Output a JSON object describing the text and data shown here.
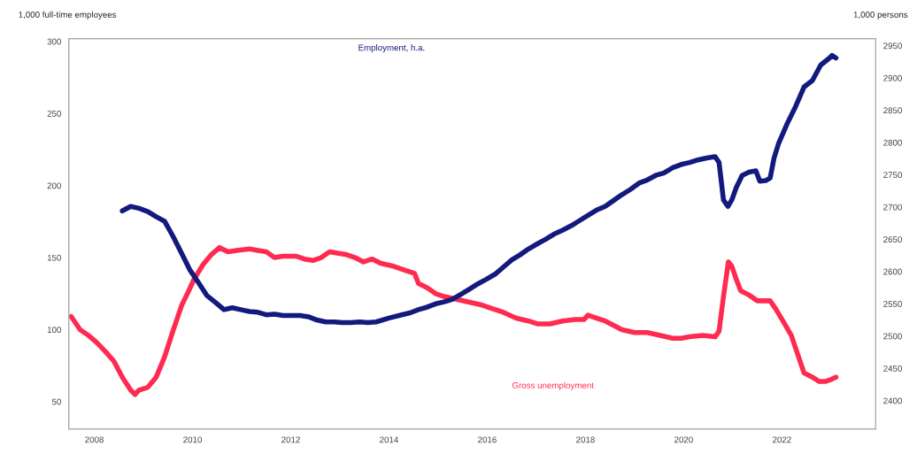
{
  "chart_data": {
    "type": "line",
    "annotations": [
      "1,000 full-time employees",
      "1,000 persons"
    ],
    "xlim": [
      2007.48,
      2023.91
    ],
    "xticks": [
      2008,
      2010,
      2012,
      2014,
      2016,
      2018,
      2020,
      2022
    ],
    "ylim": [
      31,
      302
    ],
    "yticks": [
      50,
      100,
      150,
      200,
      250,
      300
    ],
    "y2lim": [
      2356,
      2961
    ],
    "y2ticks": [
      2400,
      2450,
      2500,
      2550,
      2600,
      2650,
      2700,
      2750,
      2800,
      2850,
      2900,
      2950
    ],
    "grid": false,
    "legend": false,
    "marker": "none",
    "line_style": "solid",
    "series": [
      {
        "name": "Employment, h.a.",
        "color": "#121a7d",
        "axis": "y2",
        "x": [
          2008.57,
          2008.74,
          2008.91,
          2009.09,
          2009.26,
          2009.43,
          2009.6,
          2009.78,
          2009.95,
          2010.12,
          2010.29,
          2010.47,
          2010.64,
          2010.81,
          2010.98,
          2011.16,
          2011.33,
          2011.5,
          2011.67,
          2011.84,
          2012.02,
          2012.19,
          2012.36,
          2012.53,
          2012.71,
          2012.88,
          2013.05,
          2013.22,
          2013.4,
          2013.57,
          2013.74,
          2014.0,
          2014.26,
          2014.43,
          2014.6,
          2014.78,
          2014.95,
          2015.12,
          2015.29,
          2015.47,
          2015.64,
          2015.81,
          2015.98,
          2016.16,
          2016.33,
          2016.5,
          2016.67,
          2016.84,
          2017.02,
          2017.19,
          2017.36,
          2017.53,
          2017.71,
          2017.88,
          2018.05,
          2018.22,
          2018.4,
          2018.57,
          2018.74,
          2018.91,
          2019.09,
          2019.26,
          2019.43,
          2019.6,
          2019.78,
          2019.95,
          2020.12,
          2020.29,
          2020.47,
          2020.64,
          2020.72,
          2020.81,
          2020.9,
          2020.98,
          2021.07,
          2021.19,
          2021.33,
          2021.47,
          2021.55,
          2021.67,
          2021.76,
          2021.84,
          2021.93,
          2022.1,
          2022.28,
          2022.45,
          2022.62,
          2022.79,
          2022.97,
          2023.02,
          2023.1
        ],
        "values": [
          2694,
          2701,
          2698,
          2693,
          2685,
          2678,
          2655,
          2628,
          2602,
          2583,
          2563,
          2552,
          2541,
          2544,
          2541,
          2538,
          2537,
          2533,
          2534,
          2532,
          2532,
          2532,
          2530,
          2525,
          2522,
          2522,
          2521,
          2521,
          2522,
          2521,
          2522,
          2528,
          2533,
          2536,
          2541,
          2545,
          2550,
          2553,
          2557,
          2565,
          2573,
          2581,
          2588,
          2596,
          2607,
          2618,
          2626,
          2635,
          2643,
          2650,
          2658,
          2664,
          2671,
          2679,
          2687,
          2695,
          2701,
          2710,
          2719,
          2727,
          2737,
          2742,
          2749,
          2753,
          2761,
          2766,
          2769,
          2773,
          2776,
          2778,
          2769,
          2711,
          2701,
          2711,
          2730,
          2749,
          2754,
          2756,
          2740,
          2741,
          2745,
          2776,
          2798,
          2828,
          2856,
          2886,
          2896,
          2920,
          2931,
          2935,
          2931
        ]
      },
      {
        "name": "Gross unemployment",
        "color": "#ff2a4f",
        "x": [
          2007.53,
          2007.71,
          2007.88,
          2008.05,
          2008.22,
          2008.4,
          2008.57,
          2008.74,
          2008.83,
          2008.91,
          2009.09,
          2009.26,
          2009.43,
          2009.6,
          2009.78,
          2009.91,
          2010.03,
          2010.21,
          2010.38,
          2010.55,
          2010.72,
          2010.9,
          2011.16,
          2011.33,
          2011.5,
          2011.67,
          2011.84,
          2012.1,
          2012.28,
          2012.45,
          2012.62,
          2012.79,
          2012.97,
          2013.14,
          2013.31,
          2013.48,
          2013.66,
          2013.83,
          2014.09,
          2014.34,
          2014.52,
          2014.6,
          2014.78,
          2014.95,
          2015.12,
          2015.38,
          2015.64,
          2015.9,
          2016.07,
          2016.33,
          2016.59,
          2016.84,
          2017.02,
          2017.28,
          2017.53,
          2017.79,
          2017.97,
          2018.05,
          2018.22,
          2018.4,
          2018.57,
          2018.74,
          2019.0,
          2019.26,
          2019.52,
          2019.78,
          2019.95,
          2020.12,
          2020.38,
          2020.64,
          2020.72,
          2020.81,
          2020.91,
          2020.98,
          2021.07,
          2021.16,
          2021.33,
          2021.5,
          2021.59,
          2021.76,
          2021.88,
          2022.02,
          2022.19,
          2022.45,
          2022.62,
          2022.76,
          2022.88,
          2022.97,
          2023.1
        ],
        "values": [
          109,
          100,
          96,
          91,
          85,
          78,
          67,
          58,
          55,
          58,
          60,
          67,
          81,
          99,
          117,
          126,
          135,
          145,
          152,
          157,
          154,
          155,
          156,
          155,
          154,
          150,
          151,
          151,
          149,
          148,
          150,
          154,
          153,
          152,
          150,
          147,
          149,
          146,
          144,
          141,
          139,
          132,
          129,
          125,
          123,
          121,
          119,
          117,
          115,
          112,
          108,
          106,
          104,
          104,
          106,
          107,
          107,
          110,
          108,
          106,
          103,
          100,
          98,
          98,
          96,
          94,
          94,
          95,
          96,
          95,
          99,
          123,
          147,
          144,
          135,
          127,
          124,
          120,
          120,
          120,
          114,
          106,
          96,
          70,
          67,
          64,
          64,
          65,
          67
        ]
      }
    ]
  }
}
